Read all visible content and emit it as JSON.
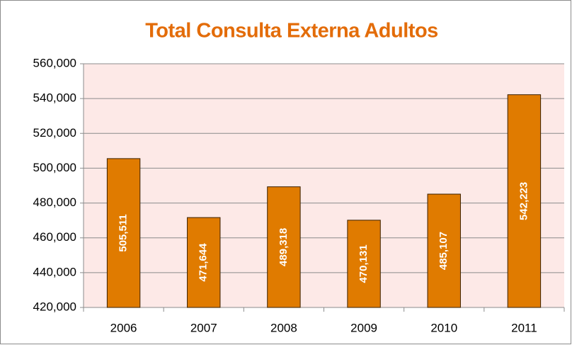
{
  "chart_data": {
    "type": "bar",
    "title": "Total Consulta Externa Adultos",
    "categories": [
      "2006",
      "2007",
      "2008",
      "2009",
      "2010",
      "2011"
    ],
    "values": [
      505511,
      471644,
      489318,
      470131,
      485107,
      542223
    ],
    "value_labels": [
      "505,511",
      "471,644",
      "489,318",
      "470,131",
      "485,107",
      "542,223"
    ],
    "color": "#e07b00",
    "ylim": [
      420000,
      560000
    ],
    "yticks": [
      {
        "value": 420000,
        "label": "420,000"
      },
      {
        "value": 440000,
        "label": "440,000"
      },
      {
        "value": 460000,
        "label": "460,000"
      },
      {
        "value": 480000,
        "label": "480,000"
      },
      {
        "value": 500000,
        "label": "500,000"
      },
      {
        "value": 520000,
        "label": "520,000"
      },
      {
        "value": 540000,
        "label": "540,000"
      },
      {
        "value": 560000,
        "label": "560,000"
      }
    ],
    "grid": true
  }
}
